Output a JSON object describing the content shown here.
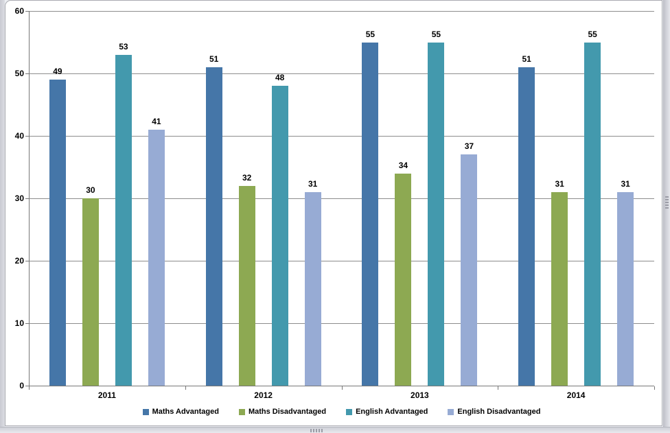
{
  "chart_data": {
    "type": "bar",
    "title": "",
    "categories": [
      "2011",
      "2012",
      "2013",
      "2014"
    ],
    "series": [
      {
        "name": "Maths Advantaged",
        "color": "#4576A8",
        "values": [
          49,
          51,
          55,
          51
        ]
      },
      {
        "name": "Maths Disadvantaged",
        "color": "#8DA952",
        "values": [
          30,
          32,
          34,
          31
        ]
      },
      {
        "name": "English Advantaged",
        "color": "#4399AD",
        "values": [
          53,
          48,
          55,
          55
        ]
      },
      {
        "name": "English Disadvantaged",
        "color": "#97ABD4",
        "values": [
          41,
          31,
          37,
          31
        ]
      }
    ],
    "ylim": [
      0,
      60
    ],
    "yticks": [
      0,
      10,
      20,
      30,
      40,
      50,
      60
    ],
    "grid": true,
    "data_labels": true,
    "legend_position": "bottom",
    "xlabel": "",
    "ylabel": "",
    "colors": {
      "grid": "#8C8C8C",
      "axis": "#777777",
      "text": "#000000",
      "chart_background": "#FFFFFF",
      "frame_background": "#D5D6DE"
    }
  }
}
